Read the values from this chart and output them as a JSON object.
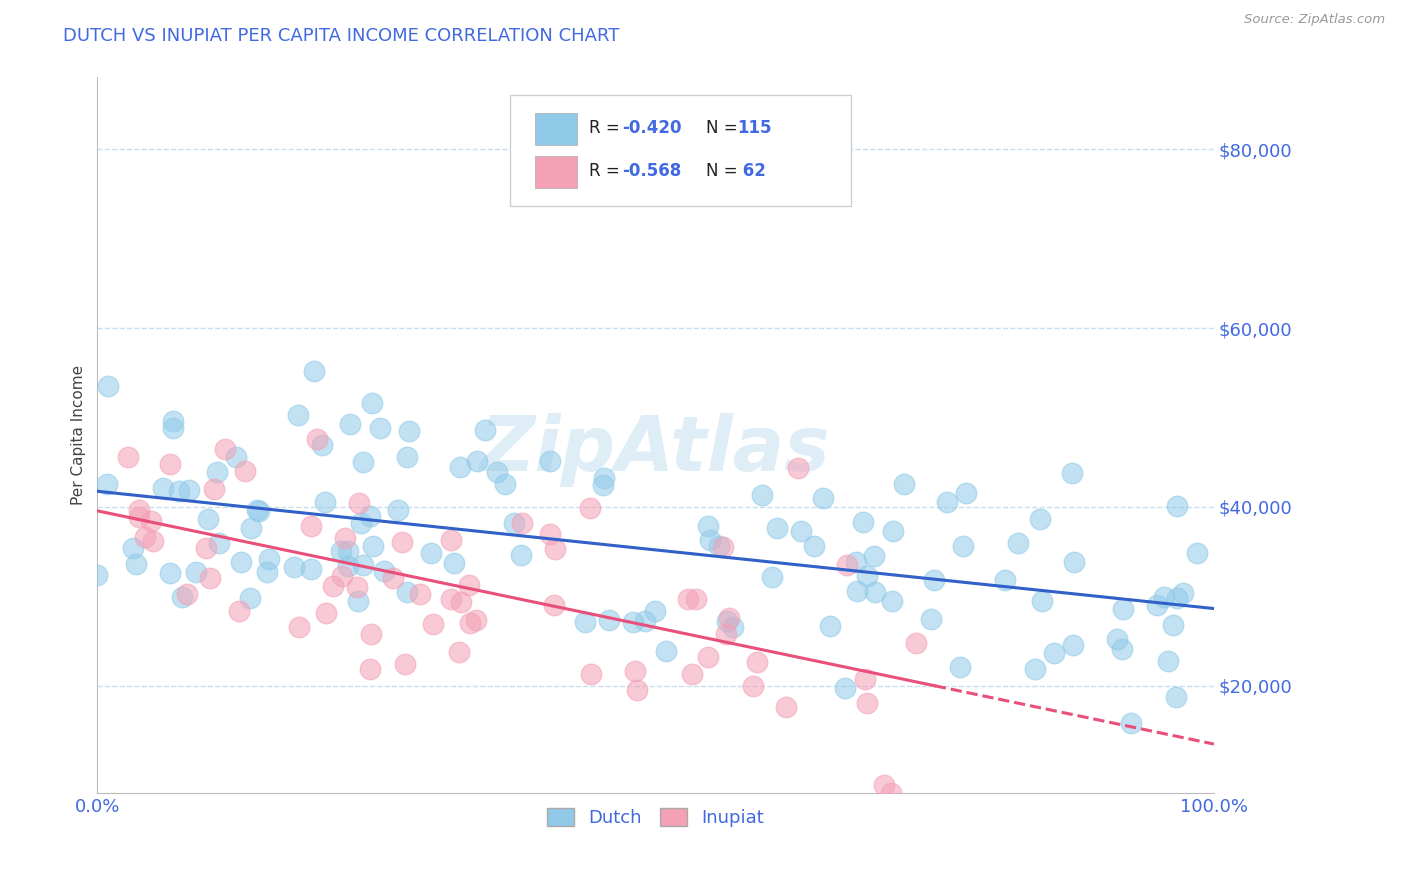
{
  "title": "DUTCH VS INUPIAT PER CAPITA INCOME CORRELATION CHART",
  "source": "Source: ZipAtlas.com",
  "ylabel": "Per Capita Income",
  "xlim": [
    0.0,
    1.0
  ],
  "ylim": [
    8000,
    88000
  ],
  "yticks": [
    20000,
    40000,
    60000,
    80000
  ],
  "ytick_labels": [
    "$20,000",
    "$40,000",
    "$60,000",
    "$80,000"
  ],
  "xtick_labels": [
    "0.0%",
    "100.0%"
  ],
  "watermark": "ZipAtlas",
  "dutch_color": "#90CAE8",
  "inupiat_color": "#F4A0B5",
  "dutch_line_color": "#3060C8",
  "inupiat_line_color": "#E8507A",
  "dutch_R": -0.42,
  "dutch_N": 115,
  "inupiat_R": -0.568,
  "inupiat_N": 62,
  "title_color": "#4169E1",
  "axis_color": "#4169E1",
  "grid_color": "#c8dff0",
  "background_color": "#ffffff"
}
